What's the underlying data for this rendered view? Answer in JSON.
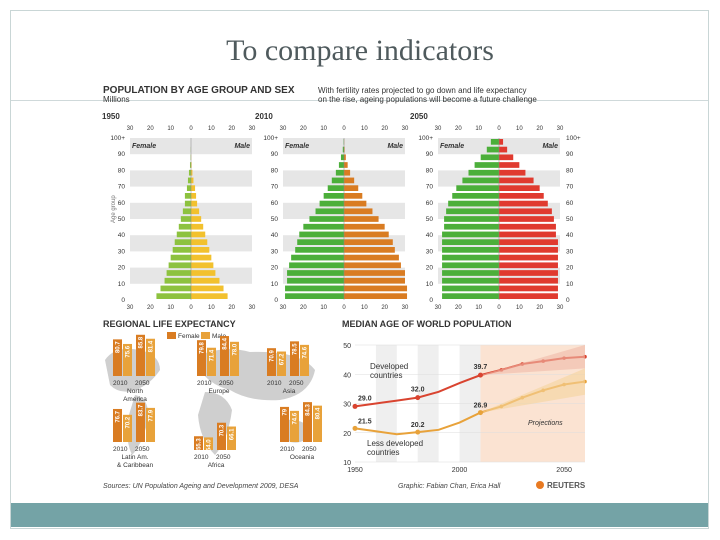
{
  "slide": {
    "title": "To compare indicators"
  },
  "colors": {
    "female": "#4caf3a",
    "male": "#e03a2f",
    "female_1950": "#8dc23f",
    "male_1950": "#f2c12e",
    "orange": "#e8a23a",
    "darkorange": "#d97c22",
    "red": "#d94430",
    "band": "#e6e6e6",
    "text": "#333333"
  },
  "pyramid": {
    "title": "POPULATION BY AGE GROUP AND SEX",
    "unit": "Millions",
    "blurb_line1": "With fertility rates projected to go down and life expectancy",
    "blurb_line2": "on the rise, ageing populations will become a future challenge",
    "female_label": "Female",
    "male_label": "Male",
    "age_axis_title": "Age group",
    "axis_ticks": [
      "30",
      "20",
      "10",
      "0",
      "10",
      "20",
      "30"
    ],
    "age_ticks": [
      "0",
      "10",
      "20",
      "30",
      "40",
      "50",
      "60",
      "70",
      "80",
      "90",
      "100+"
    ]
  },
  "life_expectancy": {
    "title": "REGIONAL LIFE EXPECTANCY",
    "legend_female": "Female",
    "legend_male": "Male",
    "years": [
      "2010",
      "2050"
    ]
  },
  "median_age": {
    "title": "MEDIAN AGE OF WORLD POPULATION",
    "developed_label_1": "Developed",
    "developed_label_2": "countries",
    "less_label_1": "Less developed",
    "less_label_2": "countries",
    "projections_label": "Projections"
  },
  "source": "Sources: UN Population Ageing and Development 2009, DESA",
  "graphic": "Graphic: Fabian Chan, Erica Hall",
  "brand": "REUTERS",
  "chart_data": [
    {
      "type": "bar",
      "title": "1950",
      "categories": [
        "0",
        "5",
        "10",
        "15",
        "20",
        "25",
        "30",
        "35",
        "40",
        "45",
        "50",
        "55",
        "60",
        "65",
        "70",
        "75",
        "80",
        "85",
        "90",
        "95",
        "100+"
      ],
      "series": [
        {
          "name": "Female",
          "values": [
            17,
            15,
            13,
            12,
            11,
            10,
            9,
            8,
            7,
            6,
            5,
            4,
            3,
            3,
            2,
            1.5,
            1,
            0.5,
            0.2,
            0.1,
            0
          ]
        },
        {
          "name": "Male",
          "values": [
            18,
            16,
            14,
            12,
            11,
            10,
            9,
            8,
            7,
            6,
            5,
            4,
            3,
            2.5,
            2,
            1.2,
            0.7,
            0.3,
            0.1,
            0,
            0
          ]
        }
      ],
      "xlim": [
        -30,
        30
      ]
    },
    {
      "type": "bar",
      "title": "2010",
      "categories": [
        "0",
        "5",
        "10",
        "15",
        "20",
        "25",
        "30",
        "35",
        "40",
        "45",
        "50",
        "55",
        "60",
        "65",
        "70",
        "75",
        "80",
        "85",
        "90",
        "95",
        "100+"
      ],
      "series": [
        {
          "name": "Female",
          "values": [
            29,
            29,
            28,
            28,
            27,
            26,
            24,
            23,
            22,
            20,
            17,
            14,
            12,
            10,
            8,
            6,
            4,
            2.5,
            1.5,
            0.6,
            0.2
          ]
        },
        {
          "name": "Male",
          "values": [
            31,
            31,
            30,
            30,
            28,
            27,
            25,
            24,
            22,
            20,
            17,
            14,
            11,
            9,
            7,
            5,
            3,
            1.8,
            0.9,
            0.3,
            0.1
          ]
        }
      ],
      "xlim": [
        -30,
        30
      ]
    },
    {
      "type": "bar",
      "title": "2050",
      "categories": [
        "0",
        "5",
        "10",
        "15",
        "20",
        "25",
        "30",
        "35",
        "40",
        "45",
        "50",
        "55",
        "60",
        "65",
        "70",
        "75",
        "80",
        "85",
        "90",
        "95",
        "100+"
      ],
      "series": [
        {
          "name": "Female",
          "values": [
            28,
            28,
            28,
            28,
            28,
            28,
            28,
            28,
            28,
            27,
            27,
            26,
            25,
            23,
            21,
            18,
            15,
            12,
            9,
            6,
            4
          ]
        },
        {
          "name": "Male",
          "values": [
            29,
            29,
            29,
            29,
            29,
            29,
            29,
            29,
            28,
            28,
            27,
            26,
            24,
            22,
            20,
            17,
            13,
            10,
            7,
            4,
            2
          ]
        }
      ],
      "xlim": [
        -30,
        30
      ]
    },
    {
      "type": "bar",
      "title": "Regional life expectancy",
      "categories": [
        "North America",
        "Europe",
        "Asia",
        "Latin Am. & Caribbean",
        "Africa",
        "Oceania"
      ],
      "series": [
        {
          "name": "Female 2010",
          "values": [
            80.7,
            79.8,
            70.9,
            76.7,
            55.3,
            79.0
          ]
        },
        {
          "name": "Male 2010",
          "values": [
            75.6,
            71.4,
            67.2,
            70.2,
            54.0,
            74.6
          ]
        },
        {
          "name": "Female 2050",
          "values": [
            85.8,
            84.4,
            78.5,
            83.7,
            70.3,
            84.3
          ]
        },
        {
          "name": "Male 2050",
          "values": [
            81.4,
            78.0,
            74.6,
            77.9,
            66.1,
            80.4
          ]
        }
      ],
      "labels": {
        "North America": [
          "80.7",
          "75.6",
          "85.8",
          "81.4"
        ],
        "Europe": [
          "79.8",
          "71.4",
          "84.4",
          "78.0"
        ],
        "Asia": [
          "70.9",
          "67.2",
          "78.5",
          "74.6"
        ],
        "Latin Am. & Caribbean": [
          "76.7",
          "70.2",
          "83.7",
          "77.9"
        ],
        "Africa": [
          "55.3",
          "54.0",
          "70.3",
          "66.1"
        ],
        "Oceania": [
          "79",
          "74.6",
          "84.3",
          "80.4"
        ]
      }
    },
    {
      "type": "line",
      "title": "Median age of world population",
      "x": [
        1950,
        1960,
        1970,
        1980,
        1990,
        2000,
        2010,
        2020,
        2030,
        2040,
        2050,
        2060
      ],
      "series": [
        {
          "name": "Developed countries",
          "values": [
            29.0,
            30.0,
            31.0,
            32.0,
            34.0,
            37.0,
            39.7,
            41.5,
            43.5,
            44.5,
            45.5,
            46.0
          ]
        },
        {
          "name": "Less developed countries",
          "values": [
            21.5,
            20.5,
            19.5,
            20.2,
            21.0,
            23.5,
            26.9,
            29.0,
            32.0,
            34.5,
            36.5,
            37.5
          ]
        }
      ],
      "point_labels": [
        {
          "series": 0,
          "x": 1950,
          "label": "29.0"
        },
        {
          "series": 0,
          "x": 1980,
          "label": "32.0"
        },
        {
          "series": 0,
          "x": 2010,
          "label": "39.7"
        },
        {
          "series": 1,
          "x": 1950,
          "label": "21.5"
        },
        {
          "series": 1,
          "x": 1980,
          "label": "20.2"
        },
        {
          "series": 1,
          "x": 2010,
          "label": "26.9"
        }
      ],
      "xticks": [
        "1950",
        "2000",
        "2050"
      ],
      "yticks": [
        "10",
        "20",
        "30",
        "40",
        "50"
      ],
      "ylim": [
        10,
        50
      ],
      "projection_start": 2010
    }
  ]
}
